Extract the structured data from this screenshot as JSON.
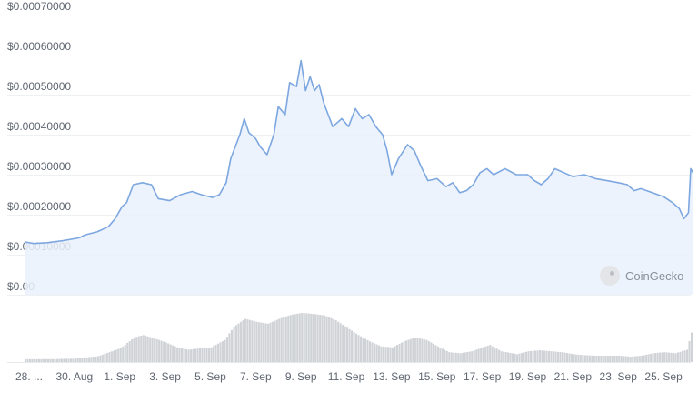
{
  "watermark": {
    "text": "CoinGecko",
    "icon": "coingecko-logo-icon"
  },
  "chart_data": {
    "type": "area",
    "grid": "horizontal",
    "line_color": "#7da7e0",
    "fill_color": "#eaf1fb",
    "volume_color": "#cfd2d6",
    "ylim": [
      0,
      0.0007
    ],
    "y_ticks": [
      {
        "value": 0,
        "label": "$0.00"
      },
      {
        "value": 0.0001,
        "label": "$0.00010000"
      },
      {
        "value": 0.0002,
        "label": "$0.00020000"
      },
      {
        "value": 0.0003,
        "label": "$0.00030000"
      },
      {
        "value": 0.0004,
        "label": "$0.00040000"
      },
      {
        "value": 0.0005,
        "label": "$0.00050000"
      },
      {
        "value": 0.0006,
        "label": "$0.00060000"
      },
      {
        "value": 0.0007,
        "label": "$0.00070000"
      }
    ],
    "x_ticks": [
      {
        "day": 0,
        "label": "28. ..."
      },
      {
        "day": 2,
        "label": "30. Aug"
      },
      {
        "day": 4,
        "label": "1. Sep"
      },
      {
        "day": 6,
        "label": "3. Sep"
      },
      {
        "day": 8,
        "label": "5. Sep"
      },
      {
        "day": 10,
        "label": "7. Sep"
      },
      {
        "day": 12,
        "label": "9. Sep"
      },
      {
        "day": 14,
        "label": "11. Sep"
      },
      {
        "day": 16,
        "label": "13. Sep"
      },
      {
        "day": 18,
        "label": "15. Sep"
      },
      {
        "day": 20,
        "label": "17. Sep"
      },
      {
        "day": 22,
        "label": "19. Sep"
      },
      {
        "day": 24,
        "label": "21. Sep"
      },
      {
        "day": 26,
        "label": "23. Sep"
      },
      {
        "day": 28,
        "label": "25. Sep"
      }
    ],
    "series": [
      {
        "points": [
          [
            -0.2,
            0.000132
          ],
          [
            0.2,
            0.000128
          ],
          [
            0.8,
            0.00013
          ],
          [
            1.5,
            0.000135
          ],
          [
            2.2,
            0.000142
          ],
          [
            2.5,
            0.00015
          ],
          [
            3.0,
            0.000157
          ],
          [
            3.5,
            0.00017
          ],
          [
            3.8,
            0.00019
          ],
          [
            4.1,
            0.00022
          ],
          [
            4.3,
            0.00023
          ],
          [
            4.6,
            0.000275
          ],
          [
            5.0,
            0.00028
          ],
          [
            5.4,
            0.000275
          ],
          [
            5.7,
            0.00024
          ],
          [
            6.2,
            0.000235
          ],
          [
            6.7,
            0.00025
          ],
          [
            7.2,
            0.000258
          ],
          [
            7.6,
            0.00025
          ],
          [
            8.1,
            0.000243
          ],
          [
            8.4,
            0.00025
          ],
          [
            8.7,
            0.00028
          ],
          [
            8.9,
            0.00034
          ],
          [
            9.1,
            0.00037
          ],
          [
            9.3,
            0.0004
          ],
          [
            9.5,
            0.00044
          ],
          [
            9.7,
            0.000405
          ],
          [
            10.0,
            0.00039
          ],
          [
            10.2,
            0.00037
          ],
          [
            10.5,
            0.00035
          ],
          [
            10.8,
            0.0004
          ],
          [
            11.0,
            0.00047
          ],
          [
            11.3,
            0.00045
          ],
          [
            11.5,
            0.00053
          ],
          [
            11.8,
            0.00052
          ],
          [
            12.0,
            0.000585
          ],
          [
            12.2,
            0.00051
          ],
          [
            12.4,
            0.000545
          ],
          [
            12.6,
            0.00051
          ],
          [
            12.8,
            0.000525
          ],
          [
            13.0,
            0.00048
          ],
          [
            13.2,
            0.00045
          ],
          [
            13.4,
            0.00042
          ],
          [
            13.8,
            0.00044
          ],
          [
            14.1,
            0.00042
          ],
          [
            14.4,
            0.000465
          ],
          [
            14.7,
            0.00044
          ],
          [
            15.0,
            0.00045
          ],
          [
            15.3,
            0.00042
          ],
          [
            15.6,
            0.0004
          ],
          [
            15.8,
            0.00036
          ],
          [
            16.0,
            0.0003
          ],
          [
            16.3,
            0.00034
          ],
          [
            16.7,
            0.000375
          ],
          [
            17.0,
            0.00036
          ],
          [
            17.3,
            0.00032
          ],
          [
            17.6,
            0.000285
          ],
          [
            18.0,
            0.00029
          ],
          [
            18.4,
            0.00027
          ],
          [
            18.7,
            0.00028
          ],
          [
            19.0,
            0.000255
          ],
          [
            19.3,
            0.00026
          ],
          [
            19.6,
            0.000275
          ],
          [
            19.9,
            0.000305
          ],
          [
            20.2,
            0.000315
          ],
          [
            20.5,
            0.0003
          ],
          [
            21.0,
            0.000315
          ],
          [
            21.5,
            0.0003
          ],
          [
            22.0,
            0.0003
          ],
          [
            22.3,
            0.000285
          ],
          [
            22.6,
            0.000275
          ],
          [
            22.9,
            0.00029
          ],
          [
            23.2,
            0.000315
          ],
          [
            23.6,
            0.000305
          ],
          [
            24.0,
            0.000295
          ],
          [
            24.5,
            0.0003
          ],
          [
            25.0,
            0.00029
          ],
          [
            25.5,
            0.000285
          ],
          [
            26.0,
            0.00028
          ],
          [
            26.4,
            0.000275
          ],
          [
            26.7,
            0.00026
          ],
          [
            27.0,
            0.000265
          ],
          [
            27.5,
            0.000255
          ],
          [
            28.0,
            0.000245
          ],
          [
            28.4,
            0.00023
          ],
          [
            28.7,
            0.000215
          ],
          [
            28.9,
            0.00019
          ],
          [
            29.1,
            0.000205
          ],
          [
            29.2,
            0.000315
          ],
          [
            29.3,
            0.000305
          ]
        ]
      }
    ],
    "volume": {
      "points": [
        [
          -0.2,
          0.06
        ],
        [
          1.0,
          0.06
        ],
        [
          2.0,
          0.07
        ],
        [
          3.0,
          0.12
        ],
        [
          4.0,
          0.28
        ],
        [
          4.6,
          0.5
        ],
        [
          5.0,
          0.55
        ],
        [
          5.5,
          0.48
        ],
        [
          6.0,
          0.4
        ],
        [
          6.5,
          0.3
        ],
        [
          7.0,
          0.25
        ],
        [
          7.5,
          0.28
        ],
        [
          8.0,
          0.3
        ],
        [
          8.6,
          0.45
        ],
        [
          9.0,
          0.72
        ],
        [
          9.5,
          0.88
        ],
        [
          10.0,
          0.82
        ],
        [
          10.5,
          0.78
        ],
        [
          11.0,
          0.88
        ],
        [
          11.5,
          0.96
        ],
        [
          12.0,
          1.0
        ],
        [
          12.5,
          0.98
        ],
        [
          13.0,
          0.95
        ],
        [
          13.5,
          0.85
        ],
        [
          14.0,
          0.7
        ],
        [
          14.5,
          0.55
        ],
        [
          15.0,
          0.42
        ],
        [
          15.5,
          0.32
        ],
        [
          16.0,
          0.3
        ],
        [
          16.5,
          0.42
        ],
        [
          17.0,
          0.5
        ],
        [
          17.5,
          0.45
        ],
        [
          18.0,
          0.32
        ],
        [
          18.5,
          0.2
        ],
        [
          19.0,
          0.18
        ],
        [
          19.5,
          0.22
        ],
        [
          20.0,
          0.3
        ],
        [
          20.3,
          0.35
        ],
        [
          20.8,
          0.22
        ],
        [
          21.5,
          0.16
        ],
        [
          22.0,
          0.22
        ],
        [
          22.5,
          0.24
        ],
        [
          23.0,
          0.22
        ],
        [
          23.5,
          0.2
        ],
        [
          24.0,
          0.16
        ],
        [
          24.5,
          0.14
        ],
        [
          25.0,
          0.13
        ],
        [
          25.5,
          0.13
        ],
        [
          26.0,
          0.13
        ],
        [
          26.5,
          0.11
        ],
        [
          27.0,
          0.13
        ],
        [
          27.5,
          0.18
        ],
        [
          28.0,
          0.2
        ],
        [
          28.5,
          0.18
        ],
        [
          29.0,
          0.25
        ],
        [
          29.2,
          0.6
        ],
        [
          29.3,
          0.62
        ]
      ]
    }
  }
}
